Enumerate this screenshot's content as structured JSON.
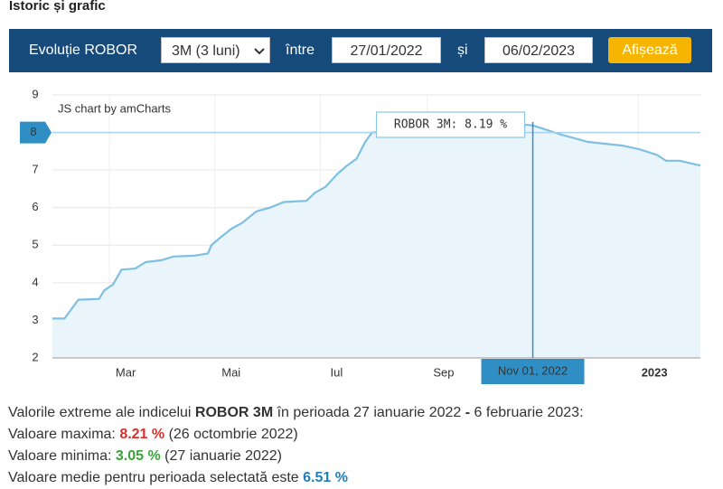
{
  "header": {
    "title": "Istoric și grafic"
  },
  "filter": {
    "label": "Evoluție ROBOR",
    "select": "3M (3 luni)",
    "between": "între",
    "from": "27/01/2022",
    "and": "și",
    "to": "06/02/2023",
    "button": "Afișează"
  },
  "chart_data": {
    "type": "line",
    "credit": "JS chart by amCharts",
    "x": [
      "2022-01-27",
      "2022-02-03",
      "2022-02-07",
      "2022-02-11",
      "2022-02-18",
      "2022-02-23",
      "2022-02-26",
      "2022-03-03",
      "2022-03-08",
      "2022-03-16",
      "2022-03-22",
      "2022-03-31",
      "2022-04-07",
      "2022-04-19",
      "2022-04-27",
      "2022-04-29",
      "2022-05-04",
      "2022-05-11",
      "2022-05-17",
      "2022-05-25",
      "2022-06-02",
      "2022-06-10",
      "2022-06-23",
      "2022-06-28",
      "2022-07-04",
      "2022-07-11",
      "2022-07-16",
      "2022-07-22",
      "2022-07-27",
      "2022-07-31",
      "2022-08-15",
      "2022-09-01",
      "2022-09-20",
      "2022-10-10",
      "2022-10-26",
      "2022-11-01",
      "2022-11-07",
      "2022-11-17",
      "2022-12-03",
      "2022-12-23",
      "2023-01-02",
      "2023-01-12",
      "2023-01-17",
      "2023-01-25",
      "2023-02-06"
    ],
    "values": [
      3.05,
      3.05,
      3.3,
      3.55,
      3.56,
      3.57,
      3.8,
      3.95,
      4.35,
      4.38,
      4.55,
      4.6,
      4.7,
      4.72,
      4.78,
      5.0,
      5.2,
      5.45,
      5.6,
      5.9,
      6.0,
      6.15,
      6.18,
      6.4,
      6.55,
      6.9,
      7.1,
      7.3,
      7.75,
      8.0,
      8.05,
      8.1,
      8.12,
      8.15,
      8.21,
      8.19,
      8.1,
      7.95,
      7.75,
      7.65,
      7.55,
      7.4,
      7.25,
      7.25,
      7.12
    ],
    "color": "#7fc0e2",
    "xlim": [
      "2022-01-27",
      "2023-02-06"
    ],
    "xticks": [
      {
        "value": "2022-03-01",
        "label": "Mar"
      },
      {
        "value": "2022-05-01",
        "label": "Mai"
      },
      {
        "value": "2022-07-01",
        "label": "Iul"
      },
      {
        "value": "2022-09-01",
        "label": "Sep"
      },
      {
        "value": "2023-01-01",
        "label": "2023"
      }
    ],
    "ylim": [
      2,
      9
    ],
    "yticks": [
      2,
      3,
      4,
      5,
      6,
      7,
      8,
      9
    ],
    "grid": true,
    "cursor": {
      "x": "2022-11-01",
      "x_label": "Nov 01, 2022",
      "y": 8,
      "tooltip": "ROBOR 3M: 8.19 %"
    }
  },
  "summary": {
    "line1": [
      "Valorile extreme ale indicelui ",
      "ROBOR 3M",
      " în perioada 27 ianuarie 2022 ",
      "-",
      " 6 februarie 2023:"
    ],
    "line2": [
      "Valoare maxima: ",
      "8.21 %",
      " (26 octombrie 2022)"
    ],
    "line3": [
      "Valoare minima: ",
      "3.05 %",
      " (27 ianuarie 2022)"
    ],
    "line4": [
      "Valoare medie pentru perioada selectată este ",
      "6.51 %"
    ]
  }
}
